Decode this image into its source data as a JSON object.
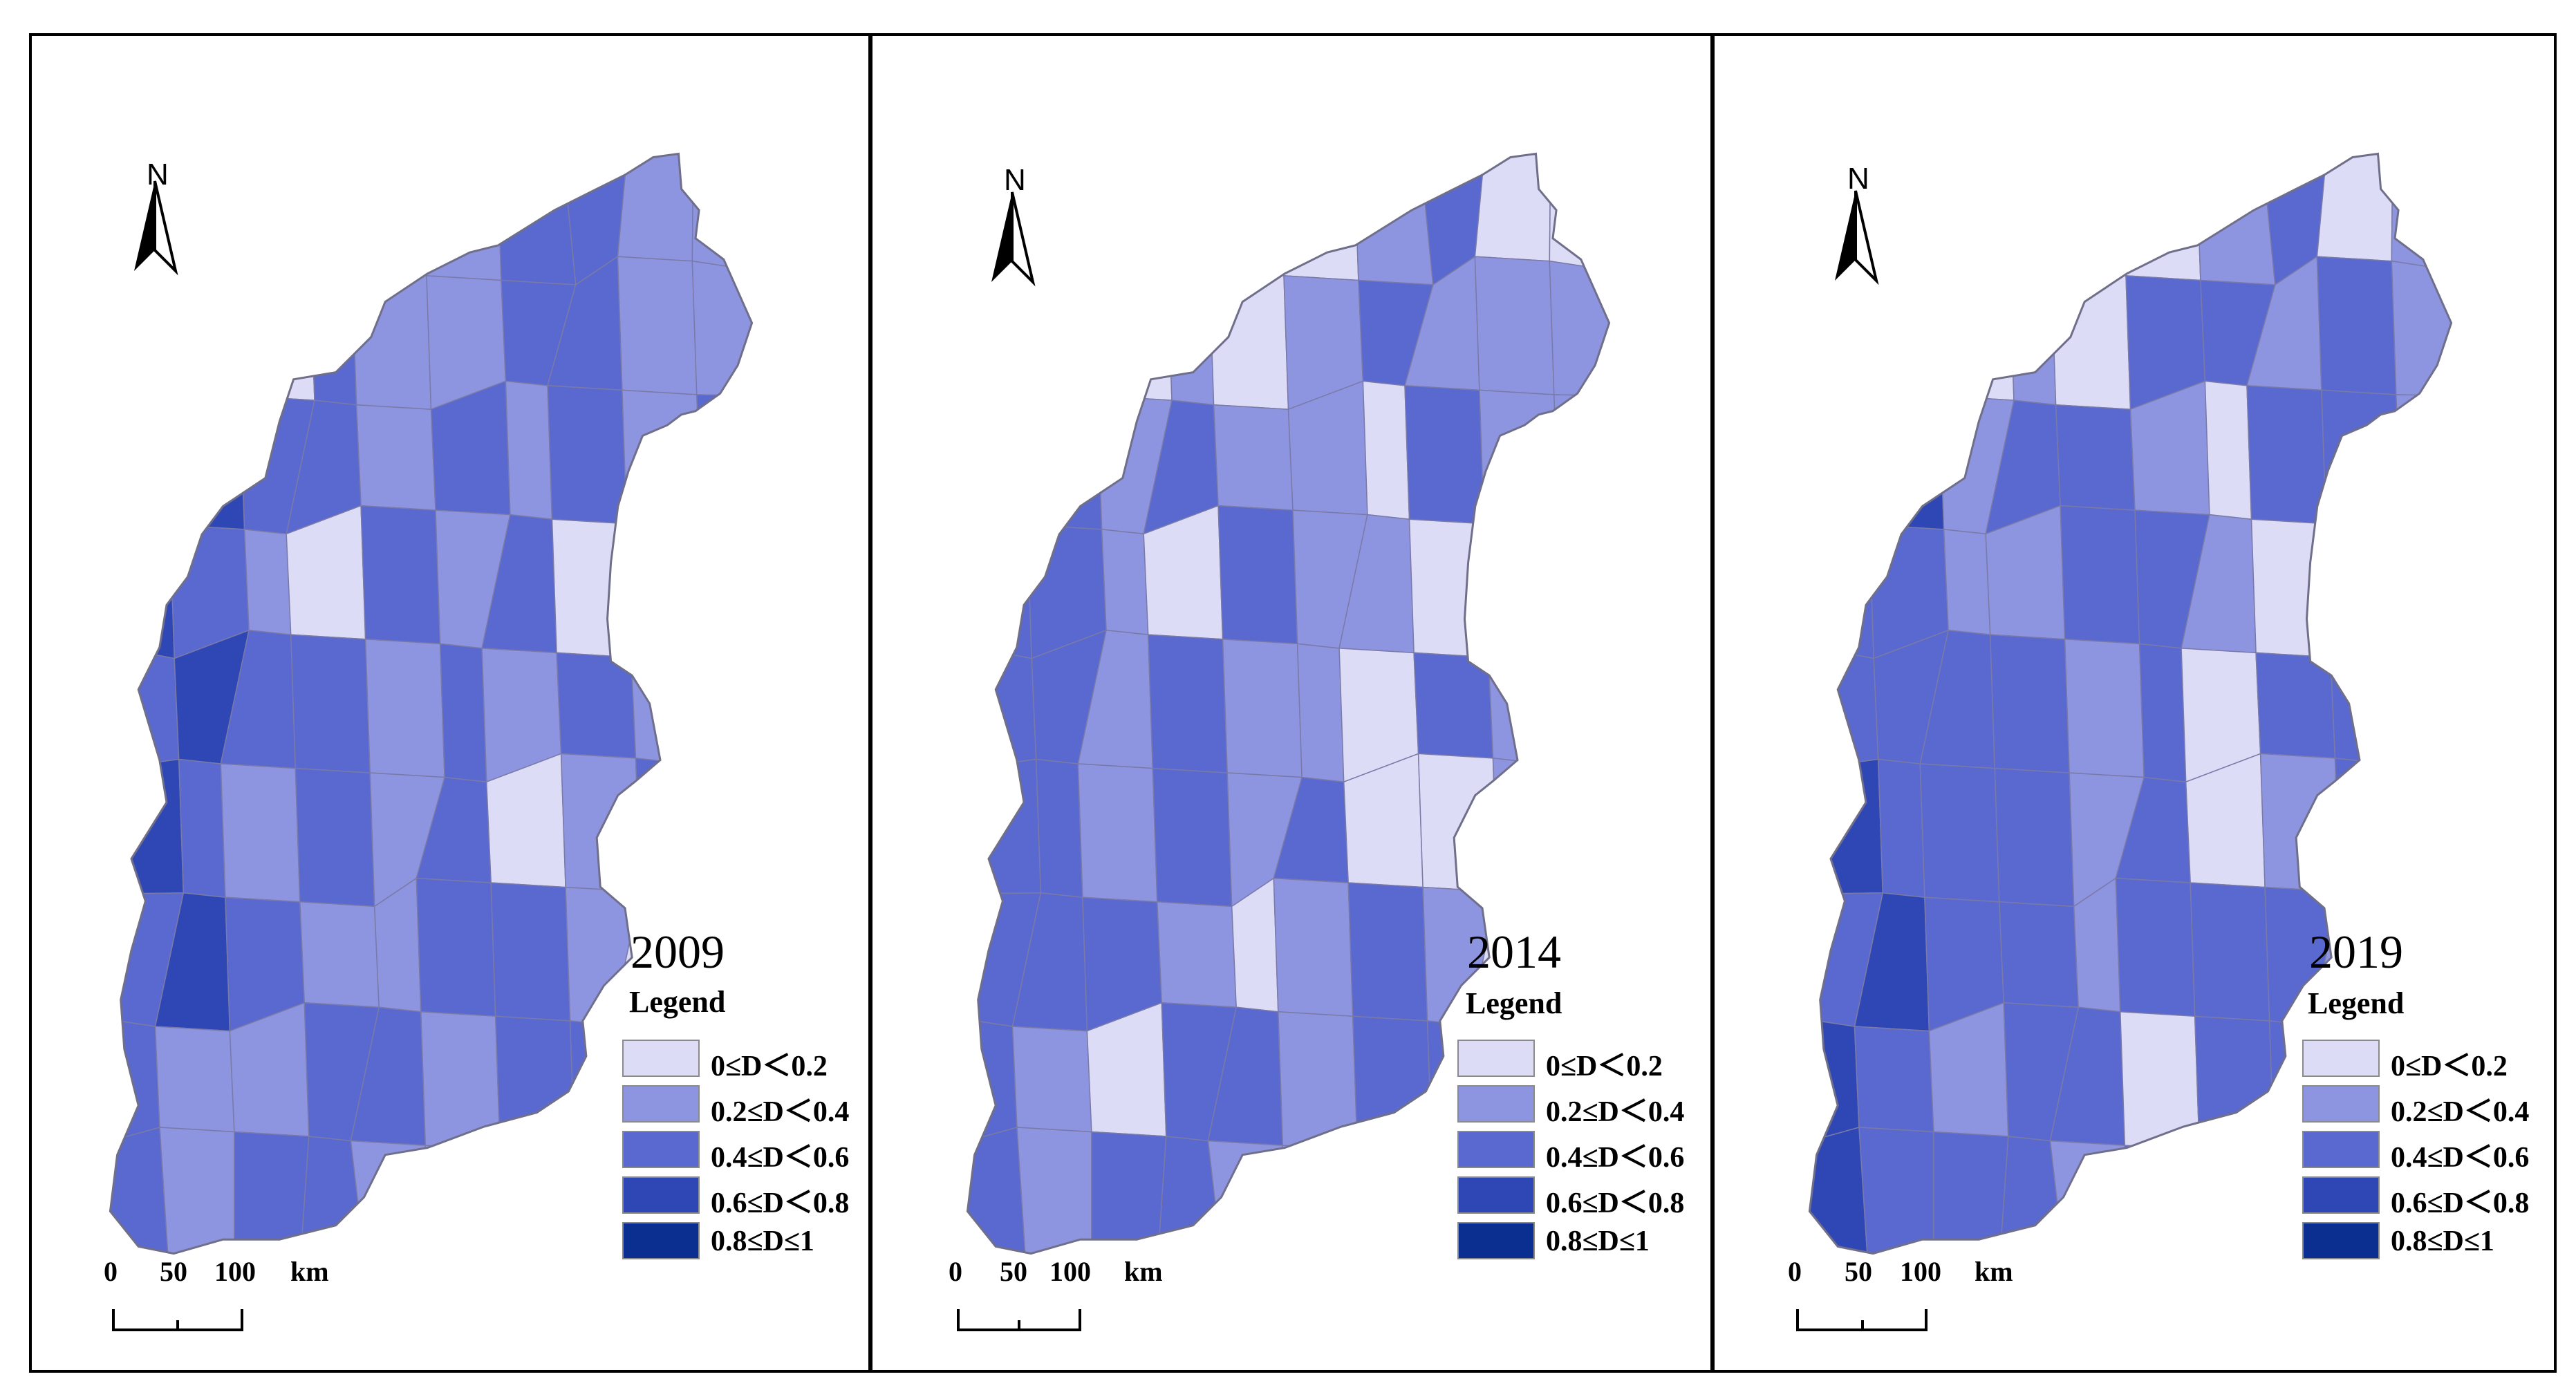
{
  "panels": [
    {
      "year": "2009",
      "scheme": [
        1,
        2,
        2,
        2,
        2,
        1,
        2,
        2,
        1,
        1,
        2,
        1,
        0,
        2,
        1,
        1,
        2,
        2,
        1,
        1,
        2,
        3,
        2,
        2,
        1,
        2,
        1,
        2,
        1,
        2,
        3,
        2,
        1,
        0,
        2,
        1,
        2,
        0,
        1,
        1,
        2,
        3,
        2,
        2,
        1,
        2,
        1,
        2,
        1,
        2,
        3,
        2,
        1,
        2,
        1,
        2,
        0,
        1,
        2,
        2,
        2,
        3,
        2,
        1,
        1,
        2,
        2,
        1,
        0,
        2,
        2,
        1,
        1,
        2,
        2,
        1,
        2,
        2,
        0,
        1,
        2,
        1,
        2,
        2,
        1,
        1,
        2,
        3,
        2,
        4
      ]
    },
    {
      "year": "2014",
      "scheme": [
        1,
        2,
        1,
        1,
        2,
        0,
        1,
        2,
        0,
        0,
        1,
        1,
        0,
        1,
        0,
        1,
        2,
        1,
        1,
        1,
        2,
        2,
        1,
        2,
        1,
        1,
        0,
        2,
        1,
        1,
        2,
        2,
        1,
        0,
        2,
        1,
        1,
        0,
        1,
        1,
        2,
        2,
        1,
        2,
        1,
        1,
        0,
        2,
        1,
        2,
        2,
        2,
        1,
        2,
        1,
        2,
        0,
        0,
        1,
        2,
        2,
        2,
        2,
        1,
        0,
        1,
        2,
        1,
        0,
        1,
        2,
        1,
        0,
        2,
        2,
        1,
        2,
        2,
        0,
        1,
        2,
        1,
        2,
        2,
        1,
        1,
        2,
        3,
        2,
        4
      ]
    },
    {
      "year": "2019",
      "scheme": [
        2,
        1,
        1,
        2,
        2,
        0,
        1,
        2,
        0,
        1,
        2,
        1,
        0,
        1,
        0,
        2,
        2,
        1,
        2,
        1,
        2,
        3,
        1,
        2,
        2,
        1,
        0,
        2,
        2,
        1,
        2,
        2,
        1,
        1,
        2,
        2,
        1,
        0,
        1,
        2,
        2,
        2,
        2,
        2,
        1,
        2,
        0,
        2,
        2,
        2,
        3,
        2,
        2,
        2,
        1,
        2,
        0,
        1,
        2,
        3,
        2,
        3,
        2,
        2,
        1,
        2,
        2,
        2,
        1,
        2,
        3,
        2,
        1,
        2,
        2,
        0,
        2,
        2,
        1,
        2,
        3,
        2,
        2,
        2,
        1,
        2,
        3,
        3,
        2,
        4
      ]
    }
  ],
  "north_label": "N",
  "legend": {
    "title": "Legend",
    "classes": [
      {
        "label": "0≤D＜0.2",
        "color": "#dcdcf6"
      },
      {
        "label": "0.2≤D＜0.4",
        "color": "#8e95e0"
      },
      {
        "label": "0.4≤D＜0.6",
        "color": "#5a69cf"
      },
      {
        "label": "0.6≤D＜0.8",
        "color": "#2f47b4"
      },
      {
        "label": "0.8≤D≤1",
        "color": "#0b2f91"
      }
    ]
  },
  "scale_bar": {
    "ticks": [
      "0",
      "50",
      "100"
    ],
    "unit": "km"
  }
}
